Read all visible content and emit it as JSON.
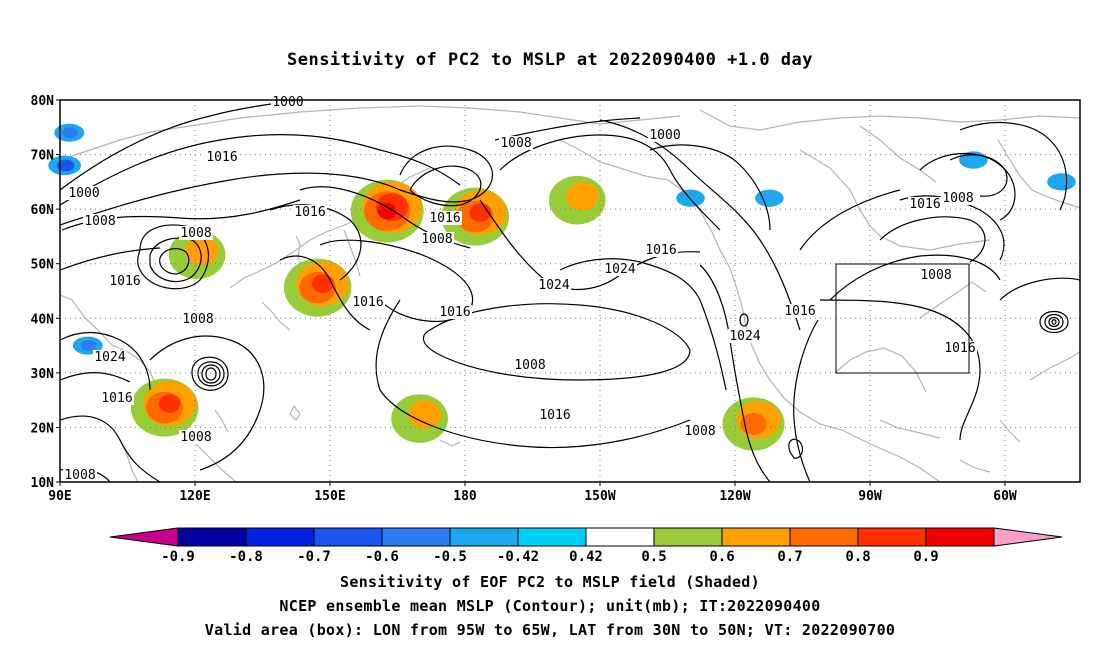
{
  "chart_data": {
    "type": "heatmap",
    "title": "Sensitivity of PC2 to MSLP at 2022090400 +1.0 day",
    "x_ticks": [
      "90E",
      "120E",
      "150E",
      "180",
      "150W",
      "120W",
      "90W",
      "60W"
    ],
    "y_ticks": [
      "10N",
      "20N",
      "30N",
      "40N",
      "50N",
      "60N",
      "70N",
      "80N"
    ],
    "x_range_lon_east": [
      90,
      310
    ],
    "y_range_lat": [
      10,
      80
    ],
    "grid": "dotted",
    "contour_labels": [
      "1000",
      "1008",
      "1016",
      "1016",
      "1000",
      "1008",
      "1016",
      "1008",
      "1016",
      "1024",
      "1024",
      "1016",
      "1008",
      "1016",
      "1016",
      "1008",
      "1008",
      "1016",
      "1024",
      "1008",
      "1000",
      "1008",
      "1016",
      "1008",
      "1016",
      "1024",
      "1008",
      "1016",
      "1008",
      "1016"
    ],
    "colorbar_labels": [
      "-0.9",
      "-0.8",
      "-0.7",
      "-0.6",
      "-0.5",
      "-0.42",
      "0.42",
      "0.5",
      "0.6",
      "0.7",
      "0.8",
      "0.9"
    ],
    "colorbar_colors": [
      "#c8008c",
      "#0000a0",
      "#0022e0",
      "#1a55f0",
      "#2c7df0",
      "#1ca8f0",
      "#00d0f8",
      "#ffffff",
      "#98cc38",
      "#ffa000",
      "#ff6a00",
      "#ff3000",
      "#f00000",
      "#f8a0c8"
    ],
    "valid_box": {
      "lon": [
        -95,
        -65
      ],
      "lat": [
        30,
        50
      ]
    },
    "positive_regions": [
      {
        "lon": 113,
        "lat": 24,
        "max": 0.7
      },
      {
        "lon": 146,
        "lat": 46,
        "max": 0.7
      },
      {
        "lon": 161,
        "lat": 60,
        "max": 0.8
      },
      {
        "lon": 180,
        "lat": 59,
        "max": 0.7
      },
      {
        "lon": 240,
        "lat": 21,
        "max": 0.6
      },
      {
        "lon": 168,
        "lat": 22,
        "max": 0.5
      },
      {
        "lon": 120,
        "lat": 52,
        "max": 0.5
      },
      {
        "lon": 202,
        "lat": 62,
        "max": 0.5
      }
    ],
    "negative_regions": [
      {
        "lon": 91,
        "lat": 68,
        "min": -0.6
      },
      {
        "lon": 92,
        "lat": 74,
        "min": -0.5
      },
      {
        "lon": 96,
        "lat": 35,
        "min": -0.5
      },
      {
        "lon": 226,
        "lat": 62,
        "min": -0.45
      },
      {
        "lon": 243,
        "lat": 62,
        "min": -0.45
      },
      {
        "lon": 287,
        "lat": 69,
        "min": -0.45
      },
      {
        "lon": 306,
        "lat": 65,
        "min": -0.45
      }
    ]
  },
  "footer": {
    "line1": "Sensitivity of EOF PC2 to MSLP field (Shaded)",
    "line2": "NCEP ensemble mean MSLP (Contour); unit(mb); IT:2022090400",
    "line3": "Valid area (box): LON from 95W to 65W, LAT from 30N to 50N; VT: 2022090700"
  }
}
